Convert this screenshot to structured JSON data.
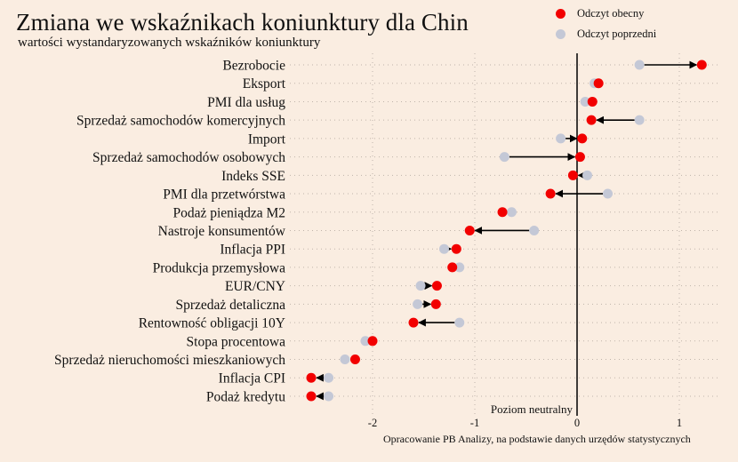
{
  "colors": {
    "background": "#FAEDE1",
    "current": "#F20000",
    "previous": "#C4C8D6",
    "arrow": "#000000",
    "grid": "#BFB4AA"
  },
  "chart_data": {
    "type": "dumbbell",
    "title": "Zmiana we wskaźnikach koniunktury dla Chin",
    "subtitle": "wartości wystandaryzowanych wskaźników koniunktury",
    "xlabel": "",
    "ylabel": "",
    "xlim": [
      -2.75,
      1.35
    ],
    "xticks": [
      -2,
      -1,
      0,
      1
    ],
    "xtick_labels": [
      "-2",
      "-1",
      "0",
      "1"
    ],
    "grid": "dotted",
    "legend_position": "top-right",
    "legend": [
      {
        "key": "current",
        "label": "Odczyt obecny"
      },
      {
        "key": "previous",
        "label": "Odczyt poprzedni"
      }
    ],
    "annotation": "Poziom neutralny",
    "source": "Opracowanie PB Analizy, na podstawie danych urzędów statystycznych",
    "categories": [
      "Bezrobocie",
      "Eksport",
      "PMI dla usług",
      "Sprzedaż samochodów komercyjnych",
      "Import",
      "Sprzedaż samochodów osobowych",
      "Indeks SSE",
      "PMI dla przetwórstwa",
      "Podaż pieniądza M2",
      "Nastroje konsumentów",
      "Inflacja PPI",
      "Produkcja przemysłowa",
      "EUR/CNY",
      "Sprzedaż detaliczna",
      "Rentowność obligacji 10Y",
      "Stopa procentowa",
      "Sprzedaż nieruchomości mieszkaniowych",
      "Inflacja CPI",
      "Podaż kredytu"
    ],
    "series": [
      {
        "name": "Odczyt obecny",
        "key": "current",
        "values": [
          1.22,
          0.21,
          0.15,
          0.14,
          0.05,
          0.03,
          -0.04,
          -0.26,
          -0.73,
          -1.05,
          -1.18,
          -1.22,
          -1.37,
          -1.38,
          -1.6,
          -2.0,
          -2.17,
          -2.6,
          -2.6
        ]
      },
      {
        "name": "Odczyt poprzedni",
        "key": "previous",
        "values": [
          0.61,
          0.17,
          0.08,
          0.61,
          -0.16,
          -0.71,
          0.1,
          0.3,
          -0.64,
          -0.42,
          -1.3,
          -1.15,
          -1.53,
          -1.56,
          -1.15,
          -2.07,
          -2.27,
          -2.43,
          -2.43
        ]
      }
    ]
  }
}
